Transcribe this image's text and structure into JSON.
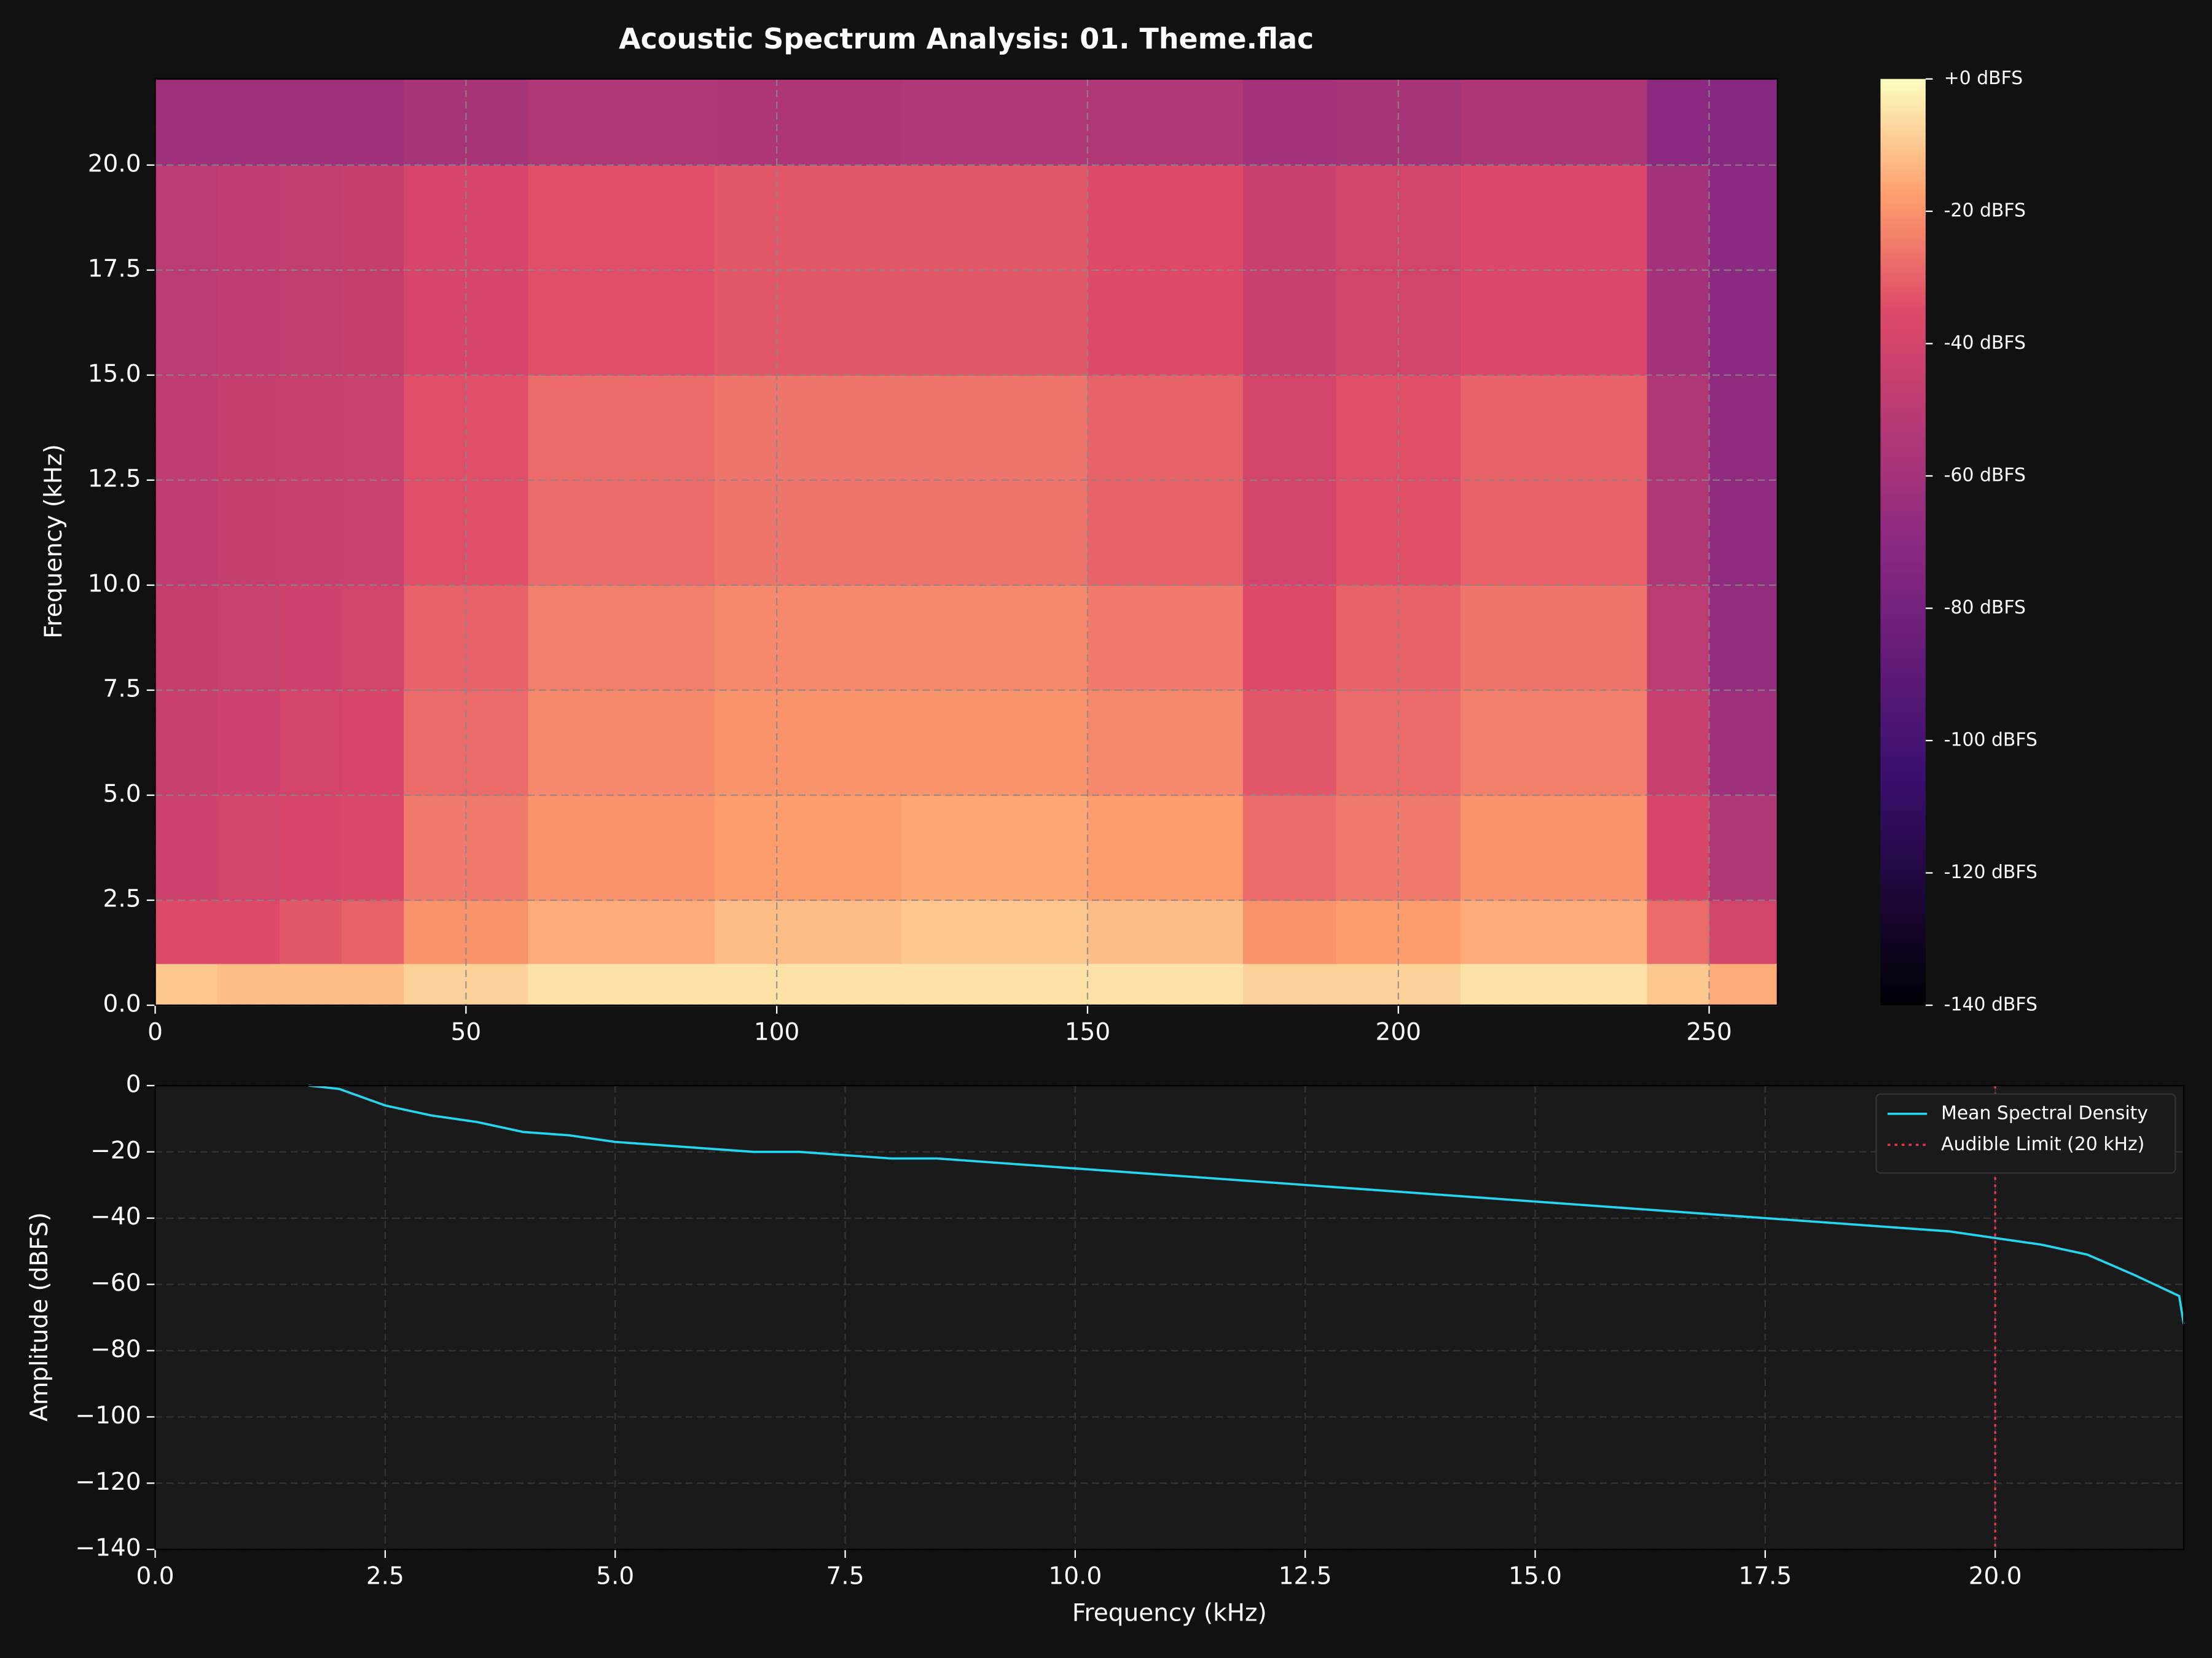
{
  "chart_data": [
    {
      "type": "spectrogram",
      "title": "Acoustic Spectrum Analysis: 01. Theme.flac",
      "y_label": "Frequency (kHz)",
      "x_edges": [
        0,
        10,
        20,
        30,
        40,
        60,
        90,
        120,
        150,
        175,
        190,
        210,
        240,
        250,
        261
      ],
      "y_edges": [
        0,
        1,
        2.5,
        5,
        7.5,
        10,
        15,
        20,
        22.05
      ],
      "values": [
        [
          -10,
          -12,
          -12,
          -12,
          -8,
          -5,
          -5,
          -5,
          -5,
          -8,
          -8,
          -5,
          -10,
          -15
        ],
        [
          -35,
          -35,
          -32,
          -30,
          -20,
          -15,
          -12,
          -10,
          -12,
          -20,
          -18,
          -15,
          -28,
          -40
        ],
        [
          -42,
          -40,
          -38,
          -36,
          -25,
          -20,
          -18,
          -16,
          -18,
          -28,
          -25,
          -20,
          -38,
          -55
        ],
        [
          -45,
          -42,
          -40,
          -38,
          -28,
          -22,
          -20,
          -20,
          -22,
          -32,
          -28,
          -24,
          -45,
          -62
        ],
        [
          -46,
          -44,
          -42,
          -40,
          -30,
          -24,
          -22,
          -22,
          -25,
          -35,
          -30,
          -26,
          -50,
          -66
        ],
        [
          -48,
          -46,
          -45,
          -44,
          -34,
          -28,
          -26,
          -26,
          -30,
          -40,
          -34,
          -30,
          -55,
          -68
        ],
        [
          -50,
          -48,
          -47,
          -46,
          -38,
          -34,
          -32,
          -32,
          -35,
          -45,
          -40,
          -36,
          -60,
          -70
        ],
        [
          -62,
          -62,
          -62,
          -62,
          -58,
          -55,
          -56,
          -54,
          -55,
          -60,
          -58,
          -56,
          -70,
          -72
        ]
      ],
      "colormap": "magma",
      "xlim": [
        0,
        261
      ],
      "xticks": [
        0,
        50,
        100,
        150,
        200,
        250
      ],
      "ylim": [
        0,
        22.05
      ],
      "yticks": [
        {
          "value": 0,
          "label": "0.0"
        },
        2.5,
        {
          "value": 5,
          "label": "5.0"
        },
        7.5,
        {
          "value": 10,
          "label": "10.0"
        },
        12.5,
        {
          "value": 15,
          "label": "15.0"
        },
        17.5,
        {
          "value": 20,
          "label": "20.0"
        }
      ],
      "clim": [
        -140,
        0
      ],
      "cticks": [
        {
          "value": 0,
          "label": "+0 dBFS"
        },
        {
          "value": -20,
          "label": "-20 dBFS"
        },
        {
          "value": -40,
          "label": "-40 dBFS"
        },
        {
          "value": -60,
          "label": "-60 dBFS"
        },
        {
          "value": -80,
          "label": "-80 dBFS"
        },
        {
          "value": -100,
          "label": "-100 dBFS"
        },
        {
          "value": -120,
          "label": "-120 dBFS"
        },
        {
          "value": -140,
          "label": "-140 dBFS"
        }
      ],
      "grid": true
    },
    {
      "type": "line",
      "x_label": "Frequency (kHz)",
      "y_label": "Amplitude (dBFS)",
      "x": [
        1.67,
        2,
        2.5,
        3,
        3.5,
        4,
        4.5,
        5,
        5.5,
        6,
        6.5,
        7,
        7.5,
        8,
        8.5,
        9,
        9.5,
        10,
        10.5,
        11,
        11.5,
        12,
        12.5,
        13,
        13.5,
        14,
        14.5,
        15,
        15.5,
        16,
        16.5,
        17,
        17.5,
        18,
        18.5,
        19,
        19.5,
        20,
        20.5,
        21,
        21.5,
        22,
        22.05
      ],
      "series": [
        {
          "name": "Mean Spectral Density",
          "color": "#22d8f0",
          "values": [
            0,
            -1,
            -6,
            -9,
            -11,
            -14,
            -15,
            -17,
            -18,
            -19,
            -20,
            -20,
            -21,
            -22,
            -22,
            -23,
            -24,
            -25,
            -26,
            -27,
            -28,
            -29,
            -30,
            -31,
            -32,
            -33,
            -34,
            -35,
            -36,
            -37,
            -38,
            -39,
            -40,
            -41,
            -42,
            -43,
            -44,
            -46,
            -48,
            -51,
            -57,
            -63.5,
            -72
          ]
        }
      ],
      "vlines": [
        {
          "name": "Audible Limit (20 kHz)",
          "x": 20,
          "color": "#e8334a"
        }
      ],
      "legend": "upper right",
      "xlim": [
        0,
        22.05
      ],
      "xticks": [
        {
          "value": 0,
          "label": "0.0"
        },
        2.5,
        {
          "value": 5,
          "label": "5.0"
        },
        7.5,
        {
          "value": 10,
          "label": "10.0"
        },
        12.5,
        {
          "value": 15,
          "label": "15.0"
        },
        17.5,
        {
          "value": 20,
          "label": "20.0"
        }
      ],
      "ylim": [
        -140,
        0
      ],
      "yticks": [
        0,
        {
          "value": -20,
          "label": "−20"
        },
        {
          "value": -40,
          "label": "−40"
        },
        {
          "value": -60,
          "label": "−60"
        },
        {
          "value": -80,
          "label": "−80"
        },
        {
          "value": -100,
          "label": "−100"
        },
        {
          "value": -120,
          "label": "−120"
        },
        {
          "value": -140,
          "label": "−140"
        }
      ],
      "grid": true
    }
  ]
}
